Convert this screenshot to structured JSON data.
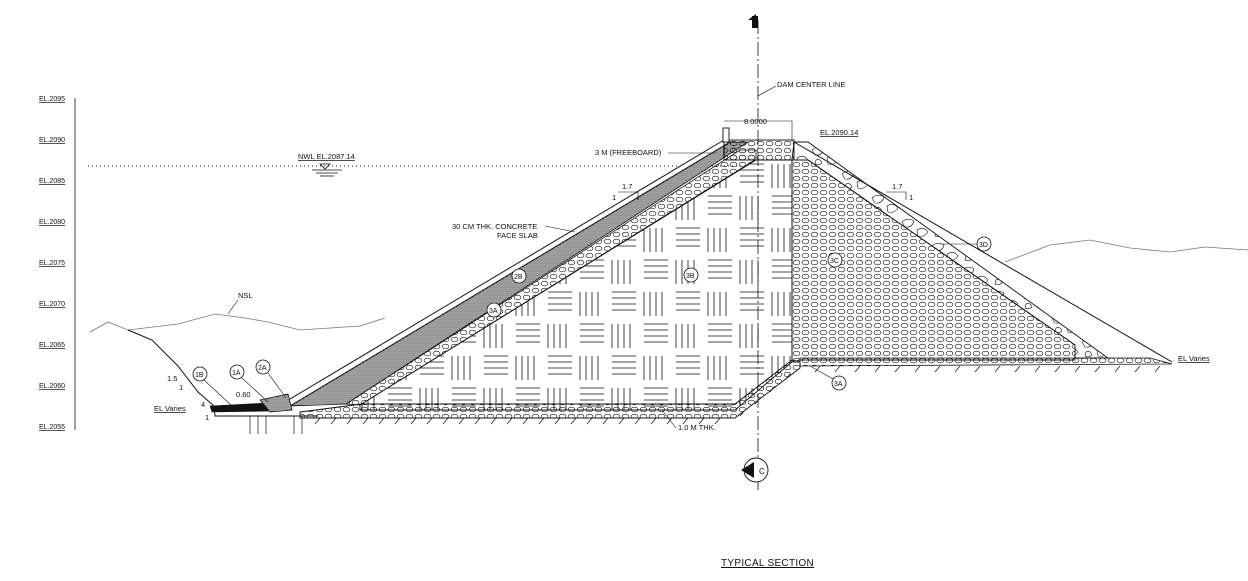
{
  "title": "TYPICAL SECTION",
  "elevations": [
    "EL.2095",
    "EL.2090",
    "EL.2085",
    "EL.2080",
    "EL.2075",
    "EL.2070",
    "EL.2065",
    "EL.2060",
    "EL.2055"
  ],
  "labels": {
    "dam_center_line": "DAM CENTER LINE",
    "crest_width": "8.0000",
    "crest_elevation": "EL.2090.14",
    "freeboard": "3 M (FREEBOARD)",
    "nwl": "NWL EL.2087.14",
    "slab_line1": "30 CM THK. CONCRETE",
    "slab_line2": "FACE SLAB",
    "nsl": "NSL",
    "el_varies_left": "EL Varies",
    "el_varies_right": "EL Varies",
    "thickness": "1.0 M THK.",
    "dim_060": "0.60",
    "slope_left_h": "1.5",
    "slope_left_v": "1",
    "slope_us_h": "1.7",
    "slope_us_v": "1",
    "slope_ds_h": "1.7",
    "slope_ds_v": "1",
    "toe_height": "4",
    "toe_v": "1"
  },
  "zones": {
    "z1a": "1A",
    "z1b": "1B",
    "z2a": "2A",
    "z2b": "2B",
    "z3a_us": "3A",
    "z3b": "3B",
    "z3c": "3C",
    "z3d": "3D",
    "z3a_ds": "3A"
  },
  "section_marker": "C",
  "colors": {
    "line": "#111111",
    "background": "#ffffff"
  }
}
